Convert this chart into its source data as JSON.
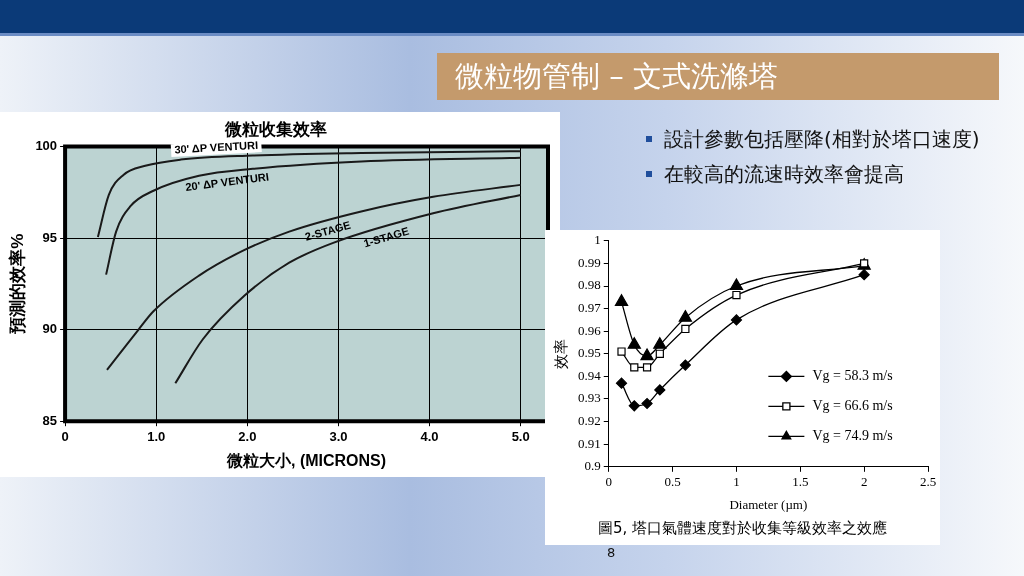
{
  "chart_data": [
    {
      "type": "other",
      "title": "微粒物管制 – 文式洗滌塔",
      "annotations": [
        "設計參數包括壓降(相對於塔口速度)",
        "在較高的流速時效率會提高",
        "8"
      ]
    },
    {
      "type": "line",
      "title": "微粒收集效率",
      "xlabel": "微粒大小, (MICRONS)",
      "ylabel": "預測的效率%",
      "xlim": [
        0,
        5.3
      ],
      "ylim": [
        85,
        100
      ],
      "xticks": [
        0,
        {
          "value": 1,
          "label": "1.0"
        },
        {
          "value": 2,
          "label": "2.0"
        },
        {
          "value": 3,
          "label": "3.0"
        },
        {
          "value": 4,
          "label": "4.0"
        },
        {
          "value": 5,
          "label": "5.0"
        }
      ],
      "yticks": [
        85,
        90,
        95,
        100
      ],
      "grid": true,
      "marker": "none",
      "line_style": "solid",
      "series": [
        {
          "name": "30' ΔP VENTURI",
          "color": "#1a1a1a",
          "x": [
            0.36,
            0.48,
            0.64,
            0.88,
            1.27,
            2.06,
            3.25,
            5.0
          ],
          "values": [
            95.05,
            97.35,
            98.44,
            98.94,
            99.28,
            99.5,
            99.64,
            99.74
          ]
        },
        {
          "name": "20' ΔP VENTURI",
          "color": "#1a1a1a",
          "x": [
            0.45,
            0.56,
            0.72,
            0.97,
            1.47,
            2.06,
            3.25,
            5.0
          ],
          "values": [
            93.0,
            95.35,
            96.75,
            97.58,
            98.4,
            98.78,
            99.18,
            99.38
          ]
        },
        {
          "name": "2-STAGE",
          "color": "#1a1a1a",
          "x": [
            0.46,
            0.8,
            0.97,
            1.47,
            1.97,
            2.46,
            3.25,
            4.04,
            5.0
          ],
          "values": [
            87.8,
            89.96,
            91.0,
            92.95,
            94.35,
            95.35,
            96.45,
            97.25,
            97.9
          ]
        },
        {
          "name": "1-STAGE",
          "color": "#1a1a1a",
          "x": [
            1.21,
            1.51,
            1.97,
            2.46,
            2.95,
            4.04,
            5.0
          ],
          "values": [
            87.07,
            89.46,
            91.86,
            93.65,
            94.75,
            96.35,
            97.35
          ]
        }
      ]
    },
    {
      "type": "line",
      "xlabel": "Diameter (µm)",
      "ylabel": "效率",
      "xlim": [
        0,
        2.5
      ],
      "ylim": [
        0.9,
        1
      ],
      "xticks": [
        0,
        0.5,
        1,
        1.5,
        2,
        2.5
      ],
      "yticks": [
        0.9,
        0.91,
        0.92,
        0.93,
        0.94,
        0.95,
        0.96,
        0.97,
        0.98,
        0.99,
        1
      ],
      "legend": "right",
      "line_style": "solid",
      "x": [
        0.1,
        0.2,
        0.3,
        0.4,
        0.6,
        1,
        2
      ],
      "annotations": [
        "圖5, 塔口氣體速度對於收集等級效率之效應"
      ],
      "series": [
        {
          "name": "Vg = 58.3 m/s",
          "color": "#000000",
          "marker": "diamond",
          "values": [
            0.937,
            0.927,
            0.928,
            0.934,
            0.945,
            0.965,
            0.985
          ]
        },
        {
          "name": "Vg = 66.6 m/s",
          "color": "#000000",
          "marker": "square",
          "values": [
            0.951,
            0.944,
            0.944,
            0.95,
            0.961,
            0.976,
            0.99
          ]
        },
        {
          "name": "Vg = 74.9 m/s",
          "color": "#000000",
          "marker": "triangle",
          "values": [
            0.973,
            0.954,
            0.949,
            0.954,
            0.966,
            0.98,
            0.989
          ]
        }
      ]
    }
  ]
}
